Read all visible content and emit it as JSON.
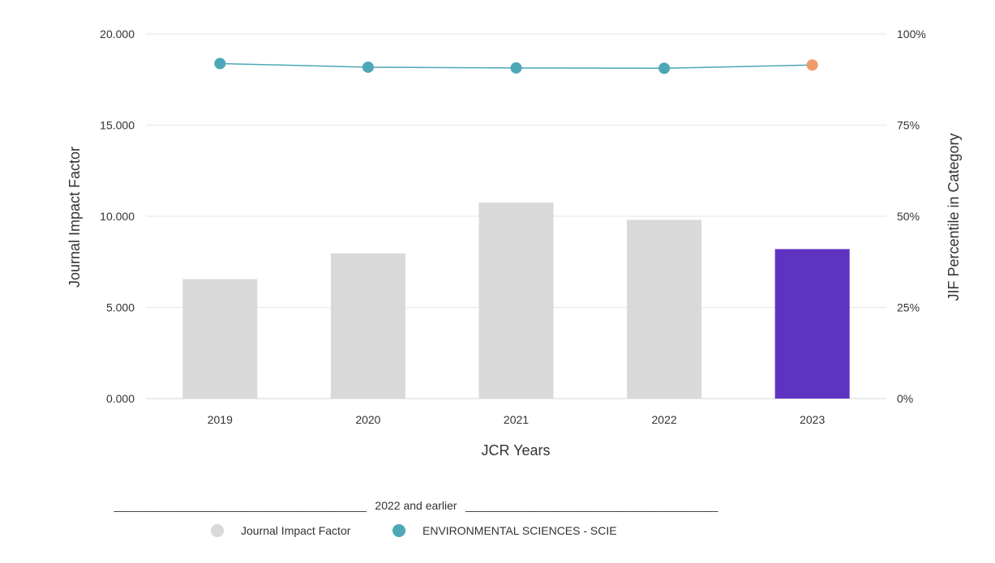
{
  "chart_data": {
    "type": "bar",
    "categories": [
      "2019",
      "2020",
      "2021",
      "2022",
      "2023"
    ],
    "series": [
      {
        "name": "Journal Impact Factor",
        "type": "bar",
        "axis": "left",
        "values": [
          6.551,
          7.963,
          10.753,
          9.8,
          8.2
        ],
        "colors": [
          "#d9d9d9",
          "#d9d9d9",
          "#d9d9d9",
          "#d9d9d9",
          "#5f33c2"
        ]
      },
      {
        "name": "ENVIRONMENTAL SCIENCES - SCIE",
        "type": "line",
        "axis": "right",
        "values": [
          91.9,
          90.9,
          90.7,
          90.6,
          91.5
        ],
        "color": "#4da7b6",
        "point_colors": [
          "#4da7b6",
          "#4da7b6",
          "#4da7b6",
          "#4da7b6",
          "#ef9a6c"
        ]
      }
    ],
    "xlabel": "JCR Years",
    "ylabel": "Journal Impact Factor",
    "y2label": "JIF Percentile in Category",
    "ylim": [
      0,
      20
    ],
    "y2lim": [
      0,
      100
    ],
    "yticks": [
      "0.000",
      "5.000",
      "10.000",
      "15.000",
      "20.000"
    ],
    "y2ticks": [
      "0%",
      "25%",
      "50%",
      "75%",
      "100%"
    ],
    "grid": true,
    "legend": {
      "placement": "bottom",
      "header_left": "________________________________________",
      "header_text": "2022 and earlier",
      "header_right": "________________________________________",
      "items": [
        {
          "label": "Journal Impact Factor",
          "color": "#d9d9d9"
        },
        {
          "label": "ENVIRONMENTAL SCIENCES - SCIE",
          "color": "#4da7b6"
        }
      ]
    }
  }
}
